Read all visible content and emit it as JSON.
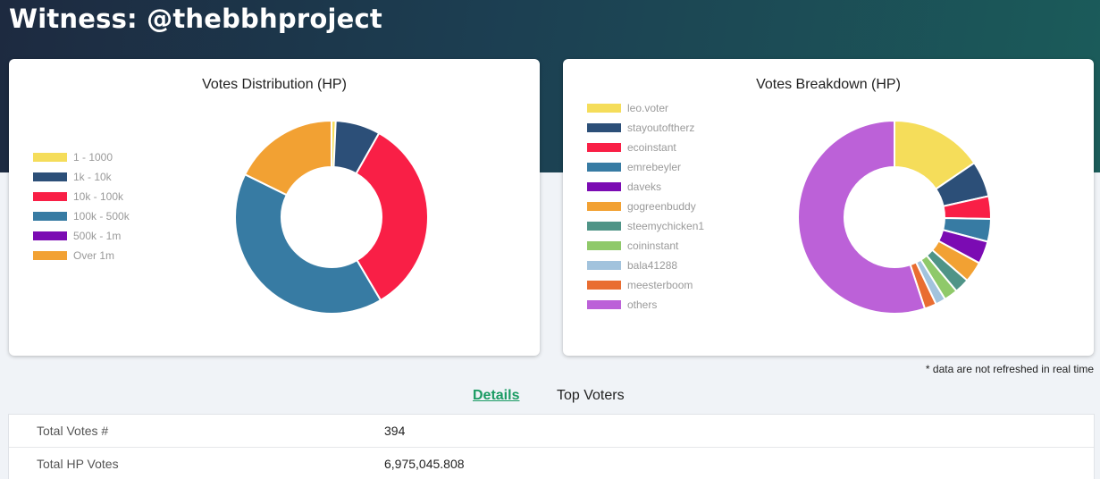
{
  "page": {
    "title": "Witness: @thebbhproject"
  },
  "footnote": "* data are not refreshed in real time",
  "tabs": [
    {
      "label": "Details",
      "active": true
    },
    {
      "label": "Top Voters",
      "active": false
    }
  ],
  "details": [
    {
      "label": "Total Votes #",
      "value": "394"
    },
    {
      "label": "Total HP Votes",
      "value": "6,975,045.808"
    }
  ],
  "chart_data": [
    {
      "type": "pie",
      "title": "Votes Distribution (HP)",
      "legend_position": "left",
      "categories": [
        "1 - 1000",
        "1k - 10k",
        "10k - 100k",
        "100k - 500k",
        "500k - 1m",
        "Over 1m"
      ],
      "colors": [
        "#f5dd5a",
        "#2c4f78",
        "#f91f46",
        "#377ba3",
        "#7b0bb3",
        "#f2a133"
      ],
      "values": [
        0.7,
        7.5,
        33.3,
        40.8,
        0.0,
        17.7
      ]
    },
    {
      "type": "pie",
      "title": "Votes Breakdown (HP)",
      "legend_position": "left",
      "categories": [
        "leo.voter",
        "stayoutoftherz",
        "ecoinstant",
        "emrebeyler",
        "daveks",
        "gogreenbuddy",
        "steemychicken1",
        "coininstant",
        "bala41288",
        "meesterboom",
        "others"
      ],
      "colors": [
        "#f5dd5a",
        "#2c4f78",
        "#f91f46",
        "#377ba3",
        "#7b0bb3",
        "#f2a133",
        "#4f9487",
        "#8fc96a",
        "#a2c3dd",
        "#e96d31",
        "#bc61d8"
      ],
      "values": [
        15.5,
        6.0,
        3.8,
        3.8,
        3.8,
        3.5,
        2.5,
        2.3,
        1.7,
        2.0,
        55.1
      ]
    }
  ]
}
